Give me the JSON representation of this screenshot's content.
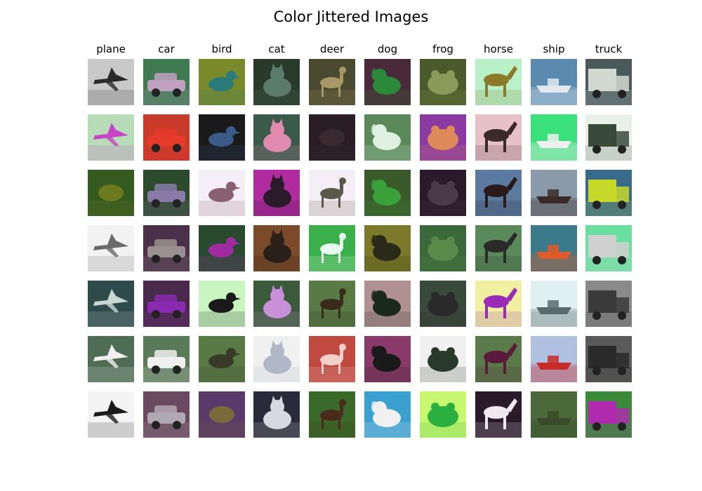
{
  "title": "Color Jittered Images",
  "columns": [
    {
      "label": "plane",
      "tiles": [
        {
          "bg": "#c9c9c9",
          "fg": "#2a2a2a",
          "shape": "plane"
        },
        {
          "bg": "#b8dcb8",
          "fg": "#c845c8",
          "shape": "plane"
        },
        {
          "bg": "#355a20",
          "fg": "#6b7a1c",
          "shape": "blob"
        },
        {
          "bg": "#f2f2f2",
          "fg": "#6a6a6a",
          "shape": "plane"
        },
        {
          "bg": "#2f4a4a",
          "fg": "#c8d8d0",
          "shape": "plane"
        },
        {
          "bg": "#4f6d55",
          "fg": "#f0f0f0",
          "shape": "plane"
        },
        {
          "bg": "#f4f4f4",
          "fg": "#1a1a1a",
          "shape": "plane"
        }
      ]
    },
    {
      "label": "car",
      "tiles": [
        {
          "bg": "#3f7a52",
          "fg": "#c0a0c0",
          "shape": "car"
        },
        {
          "bg": "#c83a2a",
          "fg": "#e63a2a",
          "shape": "car"
        },
        {
          "bg": "#2d4a2d",
          "fg": "#8a7aa8",
          "shape": "car"
        },
        {
          "bg": "#4a3048",
          "fg": "#9a9090",
          "shape": "car"
        },
        {
          "bg": "#4a2a4a",
          "fg": "#8a2ab0",
          "shape": "car"
        },
        {
          "bg": "#5a7a5a",
          "fg": "#f0f0f0",
          "shape": "car"
        },
        {
          "bg": "#6a4a60",
          "fg": "#b0a8b0",
          "shape": "car"
        }
      ]
    },
    {
      "label": "bird",
      "tiles": [
        {
          "bg": "#7a8a2a",
          "fg": "#2a7a7a",
          "shape": "bird"
        },
        {
          "bg": "#1a1a1a",
          "fg": "#3a5a8a",
          "shape": "bird"
        },
        {
          "bg": "#f6eef6",
          "fg": "#8a6070",
          "shape": "bird"
        },
        {
          "bg": "#2a4a30",
          "fg": "#a02aa0",
          "shape": "bird"
        },
        {
          "bg": "#c8f5c0",
          "fg": "#1a1a1a",
          "shape": "bird"
        },
        {
          "bg": "#5a7a45",
          "fg": "#3a3a2a",
          "shape": "bird"
        },
        {
          "bg": "#5a3a6a",
          "fg": "#7a6a3a",
          "shape": "blob"
        }
      ]
    },
    {
      "label": "cat",
      "tiles": [
        {
          "bg": "#2a3a2a",
          "fg": "#5a7a6a",
          "shape": "cat"
        },
        {
          "bg": "#3a5a4a",
          "fg": "#e08ab0",
          "shape": "cat"
        },
        {
          "bg": "#b02aa0",
          "fg": "#2a1a2a",
          "shape": "cat"
        },
        {
          "bg": "#7a4a2a",
          "fg": "#2a2018",
          "shape": "cat"
        },
        {
          "bg": "#3a5a3a",
          "fg": "#c890d8",
          "shape": "cat"
        },
        {
          "bg": "#f0f0f0",
          "fg": "#b0b8c8",
          "shape": "cat"
        },
        {
          "bg": "#2a2a3a",
          "fg": "#d8d8e0",
          "shape": "cat"
        }
      ]
    },
    {
      "label": "deer",
      "tiles": [
        {
          "bg": "#4a4a30",
          "fg": "#a89868",
          "shape": "deer"
        },
        {
          "bg": "#2a1e24",
          "fg": "#3a2a30",
          "shape": "blob"
        },
        {
          "bg": "#f6eef6",
          "fg": "#5a5a4a",
          "shape": "deer"
        },
        {
          "bg": "#3ab04a",
          "fg": "#e8f8f0",
          "shape": "deer"
        },
        {
          "bg": "#5a7a45",
          "fg": "#3a2a1a",
          "shape": "deer"
        },
        {
          "bg": "#c04a40",
          "fg": "#f0d0c8",
          "shape": "deer"
        },
        {
          "bg": "#3a6a2a",
          "fg": "#4a2a1a",
          "shape": "deer"
        }
      ]
    },
    {
      "label": "dog",
      "tiles": [
        {
          "bg": "#4a2a3a",
          "fg": "#2a8a3a",
          "shape": "dog"
        },
        {
          "bg": "#5a8a5a",
          "fg": "#e0f0e0",
          "shape": "dog"
        },
        {
          "bg": "#3a5a2a",
          "fg": "#3aa03a",
          "shape": "dog"
        },
        {
          "bg": "#7a7a2a",
          "fg": "#2a2a1a",
          "shape": "dog"
        },
        {
          "bg": "#b09090",
          "fg": "#1a2a1a",
          "shape": "dog"
        },
        {
          "bg": "#8a3a6a",
          "fg": "#1a1a1a",
          "shape": "dog"
        },
        {
          "bg": "#3aa0d0",
          "fg": "#f0f0f0",
          "shape": "dog"
        }
      ]
    },
    {
      "label": "frog",
      "tiles": [
        {
          "bg": "#4a5a2a",
          "fg": "#8a9a5a",
          "shape": "frog"
        },
        {
          "bg": "#8a3aa0",
          "fg": "#e08a5a",
          "shape": "frog"
        },
        {
          "bg": "#2a1a2a",
          "fg": "#4a3a4a",
          "shape": "frog"
        },
        {
          "bg": "#3a6a3a",
          "fg": "#5a8a4a",
          "shape": "frog"
        },
        {
          "bg": "#3a4a3a",
          "fg": "#2a2a2a",
          "shape": "frog"
        },
        {
          "bg": "#f0f0f0",
          "fg": "#2a3a2a",
          "shape": "frog"
        },
        {
          "bg": "#c8f870",
          "fg": "#2ab040",
          "shape": "frog"
        }
      ]
    },
    {
      "label": "horse",
      "tiles": [
        {
          "bg": "#b8f0c8",
          "fg": "#8a7a2a",
          "shape": "horse"
        },
        {
          "bg": "#e8c0c8",
          "fg": "#3a2a2a",
          "shape": "horse"
        },
        {
          "bg": "#5a7aa0",
          "fg": "#2a1a1a",
          "shape": "horse"
        },
        {
          "bg": "#5a8a5a",
          "fg": "#2a2a2a",
          "shape": "horse"
        },
        {
          "bg": "#f0f0a0",
          "fg": "#9a2ab8",
          "shape": "horse"
        },
        {
          "bg": "#5a7a4a",
          "fg": "#5a1a3a",
          "shape": "horse"
        },
        {
          "bg": "#2a1a2a",
          "fg": "#f0e8f0",
          "shape": "horse"
        }
      ]
    },
    {
      "label": "ship",
      "tiles": [
        {
          "bg": "#5a8ab0",
          "fg": "#e0e8f0",
          "shape": "ship"
        },
        {
          "bg": "#3ae07a",
          "fg": "#f0f0f0",
          "shape": "ship"
        },
        {
          "bg": "#8a9aa8",
          "fg": "#3a2a2a",
          "shape": "ship"
        },
        {
          "bg": "#3a7a8a",
          "fg": "#e05a2a",
          "shape": "ship"
        },
        {
          "bg": "#e0f0f0",
          "fg": "#5a6a6a",
          "shape": "ship"
        },
        {
          "bg": "#b0c0e0",
          "fg": "#c82a2a",
          "shape": "ship"
        },
        {
          "bg": "#4a6a3a",
          "fg": "#3a4a2a",
          "shape": "ship"
        }
      ]
    },
    {
      "label": "truck",
      "tiles": [
        {
          "bg": "#4a5a5a",
          "fg": "#d0d8d0",
          "shape": "truck"
        },
        {
          "bg": "#e8f0e8",
          "fg": "#3a4a3a",
          "shape": "truck"
        },
        {
          "bg": "#3a6a8a",
          "fg": "#c8d82a",
          "shape": "truck"
        },
        {
          "bg": "#6ae0a0",
          "fg": "#d0d0d0",
          "shape": "truck"
        },
        {
          "bg": "#8a8a8a",
          "fg": "#3a3a3a",
          "shape": "truck"
        },
        {
          "bg": "#5a5a5a",
          "fg": "#2a2a2a",
          "shape": "truck"
        },
        {
          "bg": "#3a8a3a",
          "fg": "#b02ab0",
          "shape": "truck"
        }
      ]
    }
  ]
}
